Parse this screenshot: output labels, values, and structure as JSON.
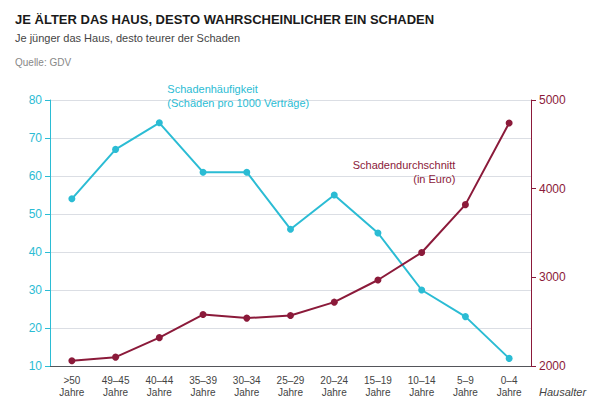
{
  "chart_data": {
    "type": "line",
    "title": "JE ÄLTER DAS HAUS, DESTO WAHRSCHEINLICHER EIN SCHADEN",
    "subtitle": "Je jünger das Haus, desto teurer der Schaden",
    "source": "Quelle: GDV",
    "xlabel": "Hausalter",
    "categories": [
      ">50\nJahre",
      "49–45\nJahre",
      "40–44\nJahre",
      "35–39\nJahre",
      "30–34\nJahre",
      "25–29\nJahre",
      "20–24\nJahre",
      "15–19\nJahre",
      "10–14\nJahre",
      "5–9\nJahre",
      "0–4\nJahre"
    ],
    "series": [
      {
        "name": "Schadenhäufigkeit\n(Schäden pro 1000 Verträge)",
        "color": "#2BBCD4",
        "values": [
          54,
          67,
          74,
          61,
          61,
          46,
          55,
          45,
          30,
          23,
          12
        ]
      },
      {
        "name": "Schadendurchschnitt\n(in Euro)",
        "color": "#8B1A3A",
        "axis": "y2",
        "values": [
          2060,
          2100,
          2320,
          2580,
          2540,
          2570,
          2720,
          2970,
          3280,
          3820,
          4740
        ]
      }
    ],
    "ylim": [
      10,
      80
    ],
    "yticks": [
      10,
      20,
      30,
      40,
      50,
      60,
      70,
      80
    ],
    "y2lim": [
      2000,
      5000
    ],
    "y2ticks": [
      2000,
      3000,
      4000,
      5000
    ],
    "grid": true,
    "marker": "circle"
  }
}
